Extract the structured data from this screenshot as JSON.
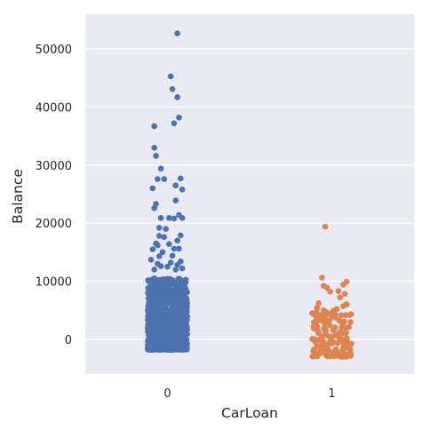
{
  "chart_data": {
    "type": "scatter",
    "subtype": "strip",
    "xlabel": "CarLoan",
    "ylabel": "Balance",
    "categories": [
      "0",
      "1"
    ],
    "ylim": [
      -6000,
      56000
    ],
    "yticks": [
      0,
      10000,
      20000,
      30000,
      40000,
      50000
    ],
    "ytick_labels": [
      "0",
      "10000",
      "20000",
      "30000",
      "40000",
      "50000"
    ],
    "grid": true,
    "legend": "none",
    "colors": {
      "0": "#4c72b0",
      "1": "#dd8452",
      "background": "#eaeaf2",
      "grid": "#ffffff"
    },
    "series": [
      {
        "category": "0",
        "outliers": [
          [
            0.06,
            52700
          ],
          [
            0.02,
            45300
          ],
          [
            0.03,
            43100
          ],
          [
            0.06,
            41700
          ],
          [
            0.07,
            38200
          ],
          [
            0.04,
            37200
          ],
          [
            -0.08,
            36700
          ],
          [
            -0.08,
            33000
          ],
          [
            -0.07,
            31600
          ],
          [
            -0.04,
            29400
          ],
          [
            0.08,
            27700
          ],
          [
            -0.06,
            27600
          ],
          [
            -0.02,
            27600
          ],
          [
            0.05,
            26500
          ],
          [
            0.09,
            25800
          ],
          [
            -0.09,
            26000
          ],
          [
            0.05,
            23900
          ],
          [
            -0.08,
            22600
          ],
          [
            -0.07,
            23300
          ],
          [
            0.09,
            20900
          ],
          [
            0.07,
            21400
          ],
          [
            -0.04,
            20900
          ],
          [
            0.01,
            20900
          ],
          [
            0.04,
            20800
          ],
          [
            -0.01,
            19000
          ],
          [
            -0.05,
            19200
          ],
          [
            0.08,
            17900
          ],
          [
            -0.05,
            17800
          ],
          [
            -0.02,
            17600
          ],
          [
            -0.07,
            16500
          ],
          [
            0.06,
            17000
          ],
          [
            -0.06,
            16200
          ],
          [
            0.01,
            16400
          ],
          [
            0.04,
            15600
          ],
          [
            -0.09,
            15500
          ],
          [
            0.07,
            15600
          ],
          [
            -0.03,
            15000
          ],
          [
            0.03,
            14400
          ],
          [
            -0.05,
            14300
          ],
          [
            -0.1,
            13700
          ],
          [
            0.08,
            13400
          ],
          [
            0.02,
            13200
          ],
          [
            -0.06,
            13000
          ],
          [
            -0.04,
            12600
          ],
          [
            0.06,
            12800
          ],
          [
            0.09,
            12200
          ],
          [
            0.0,
            12500
          ],
          [
            -0.08,
            12000
          ],
          [
            0.05,
            12000
          ]
        ],
        "core_range": [
          -1800,
          10500
        ],
        "core_count": 1100,
        "jitter": 0.12
      },
      {
        "category": "1",
        "outliers": [
          [
            -0.04,
            19400
          ],
          [
            -0.06,
            10600
          ],
          [
            0.09,
            9900
          ],
          [
            0.07,
            9400
          ],
          [
            -0.05,
            9200
          ],
          [
            -0.03,
            8900
          ],
          [
            0.04,
            8300
          ],
          [
            -0.01,
            8200
          ],
          [
            0.08,
            7800
          ],
          [
            0.05,
            7200
          ],
          [
            -0.08,
            6200
          ],
          [
            0.09,
            6000
          ],
          [
            0.07,
            5700
          ],
          [
            -0.09,
            5400
          ],
          [
            0.03,
            5200
          ],
          [
            -0.05,
            5000
          ],
          [
            0.01,
            4900
          ],
          [
            -0.1,
            4000
          ]
        ],
        "core_range": [
          -3000,
          4800
        ],
        "core_count": 150,
        "jitter": 0.12
      }
    ]
  }
}
